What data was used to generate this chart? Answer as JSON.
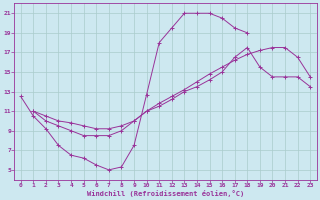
{
  "xlabel": "Windchill (Refroidissement éolien,°C)",
  "xlim": [
    -0.5,
    23.5
  ],
  "ylim": [
    4,
    22
  ],
  "xticks": [
    0,
    1,
    2,
    3,
    4,
    5,
    6,
    7,
    8,
    9,
    10,
    11,
    12,
    13,
    14,
    15,
    16,
    17,
    18,
    19,
    20,
    21,
    22,
    23
  ],
  "yticks": [
    5,
    7,
    9,
    11,
    13,
    15,
    17,
    19,
    21
  ],
  "bg_color": "#cde8f0",
  "grid_color": "#aacccc",
  "line_color": "#993399",
  "series": [
    {
      "x": [
        0,
        1,
        2,
        3,
        4,
        5,
        6,
        7,
        8,
        9,
        10,
        11,
        12,
        13,
        14,
        15,
        16,
        17,
        18
      ],
      "y": [
        12.5,
        10.5,
        9.2,
        7.5,
        6.5,
        6.2,
        5.5,
        5.0,
        5.3,
        7.5,
        12.7,
        18.0,
        19.5,
        21.0,
        21.0,
        21.0,
        20.5,
        19.5,
        19.0
      ]
    },
    {
      "x": [
        1,
        2,
        3,
        4,
        5,
        6,
        7,
        8,
        9,
        10,
        11,
        12,
        13,
        14,
        15,
        16,
        17,
        18,
        19,
        20,
        21,
        22,
        23
      ],
      "y": [
        11.0,
        10.5,
        10.0,
        9.8,
        9.5,
        9.2,
        9.2,
        9.5,
        10.0,
        11.0,
        11.5,
        12.2,
        13.0,
        13.5,
        14.2,
        15.0,
        16.5,
        17.5,
        15.5,
        14.5,
        14.5,
        14.5,
        13.5
      ]
    },
    {
      "x": [
        1,
        2,
        3,
        4,
        5,
        6,
        7,
        8,
        9,
        10,
        11,
        12,
        13,
        14,
        15,
        16,
        17,
        18,
        19,
        20,
        21,
        22,
        23
      ],
      "y": [
        11.0,
        10.0,
        9.5,
        9.0,
        8.5,
        8.5,
        8.5,
        9.0,
        10.0,
        11.0,
        11.8,
        12.5,
        13.2,
        14.0,
        14.8,
        15.5,
        16.2,
        16.8,
        17.2,
        17.5,
        17.5,
        16.5,
        14.5
      ]
    }
  ]
}
